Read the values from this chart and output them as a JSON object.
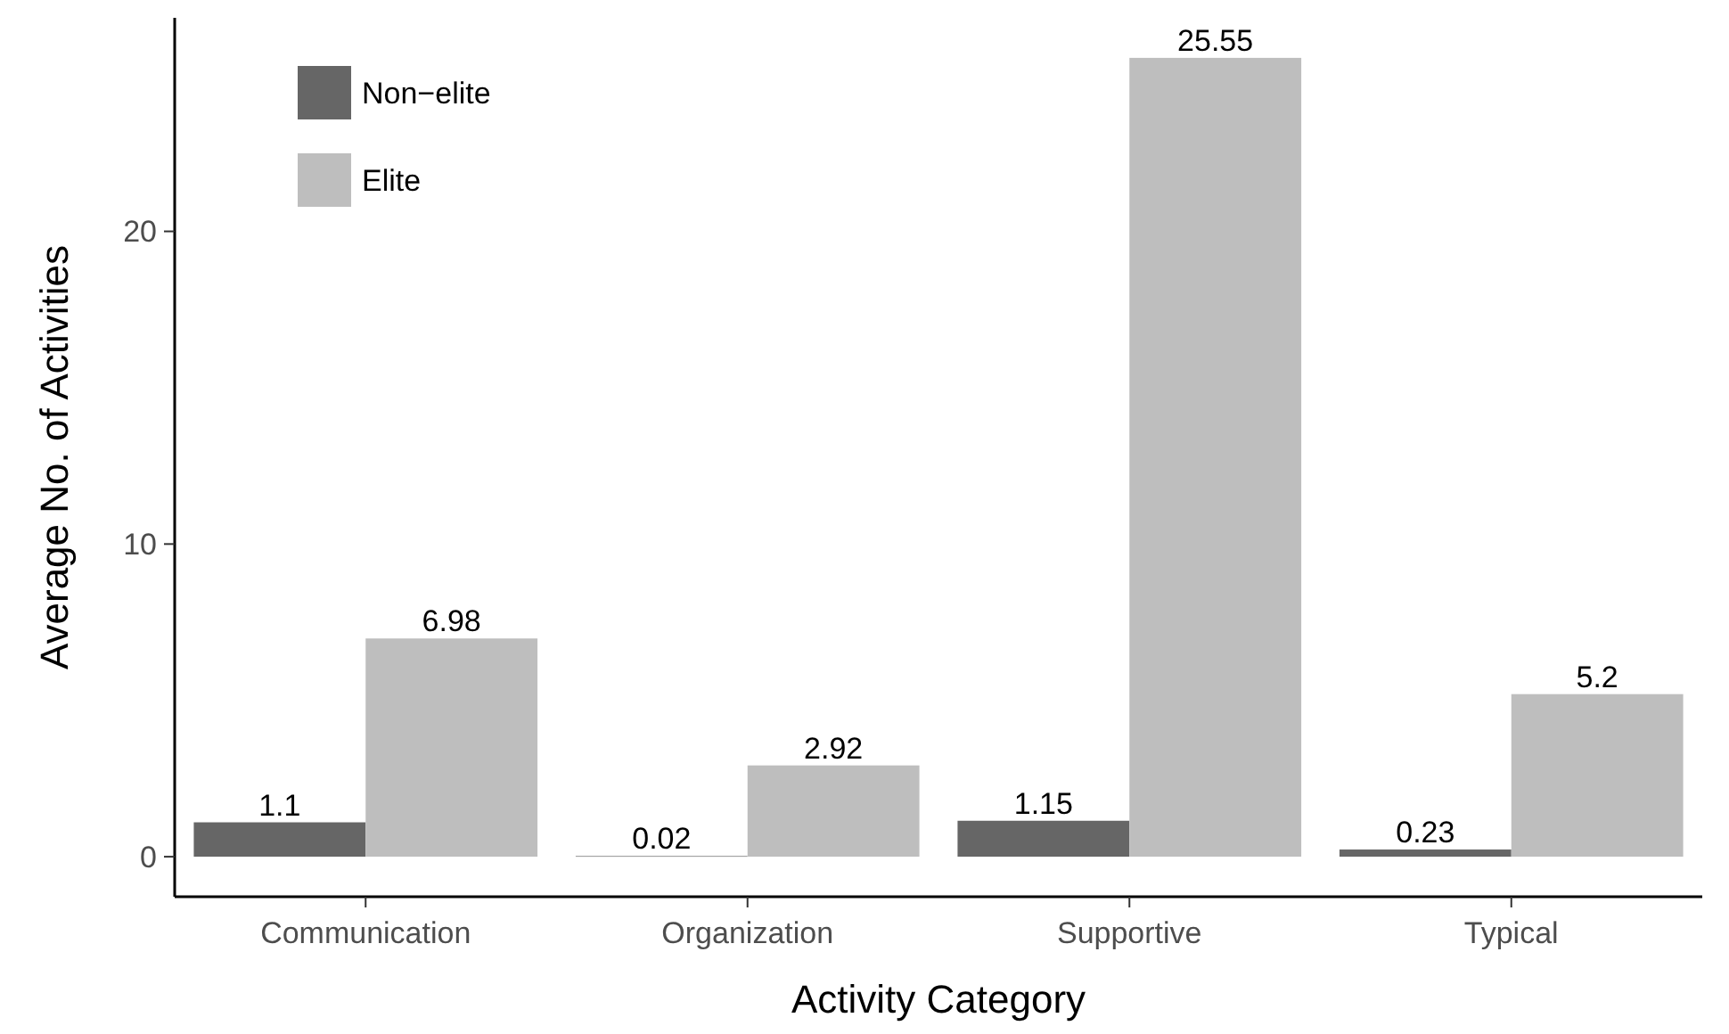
{
  "chart_data": {
    "type": "bar",
    "xlabel": "Activity Category",
    "ylabel": "Average No. of Activities",
    "categories": [
      "Communication",
      "Organization",
      "Supportive",
      "Typical"
    ],
    "series": [
      {
        "name": "Non−elite",
        "color": "#666666",
        "values": [
          1.1,
          0.02,
          1.15,
          0.23
        ]
      },
      {
        "name": "Elite",
        "color": "#bebebe",
        "values": [
          6.98,
          2.92,
          25.55,
          5.2
        ]
      }
    ],
    "ylim": [
      -1.28,
      26.83
    ],
    "yticks": [
      0,
      10,
      20
    ],
    "data_labels": true,
    "legend": "top left",
    "grid": false
  }
}
